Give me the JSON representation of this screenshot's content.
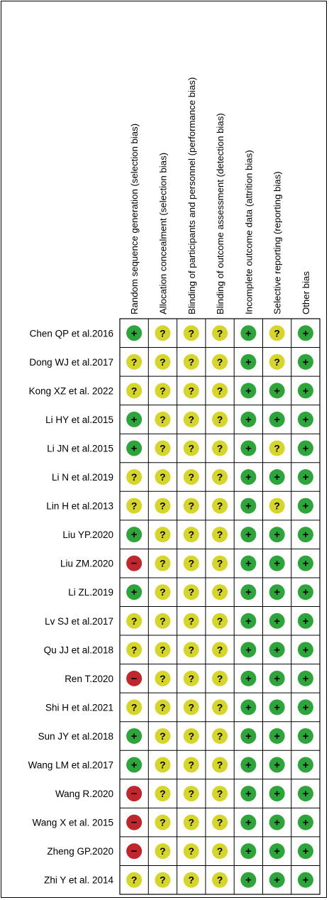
{
  "chart_data": {
    "type": "table",
    "columns": [
      "Random sequence generation (selection bias)",
      "Allocation concealment (selection bias)",
      "Blinding of participants and personnel (performance bias)",
      "Blinding of outcome assessment (detection bias)",
      "Incomplete outcome data (attrition bias)",
      "Selective reporting (reporting bias)",
      "Other bias"
    ],
    "rows": [
      {
        "study": "Chen QP et al.2016",
        "ratings": [
          "low",
          "unclear",
          "unclear",
          "unclear",
          "low",
          "unclear",
          "low"
        ]
      },
      {
        "study": "Dong WJ et al.2017",
        "ratings": [
          "unclear",
          "unclear",
          "unclear",
          "unclear",
          "low",
          "unclear",
          "low"
        ]
      },
      {
        "study": "Kong XZ et al. 2022",
        "ratings": [
          "unclear",
          "unclear",
          "unclear",
          "unclear",
          "low",
          "low",
          "low"
        ]
      },
      {
        "study": "Li HY et al.2015",
        "ratings": [
          "low",
          "unclear",
          "unclear",
          "unclear",
          "low",
          "low",
          "low"
        ]
      },
      {
        "study": "Li JN et al.2015",
        "ratings": [
          "low",
          "unclear",
          "unclear",
          "unclear",
          "low",
          "unclear",
          "low"
        ]
      },
      {
        "study": "Li N et al.2019",
        "ratings": [
          "unclear",
          "unclear",
          "unclear",
          "unclear",
          "low",
          "low",
          "low"
        ]
      },
      {
        "study": "Lin H et al.2013",
        "ratings": [
          "unclear",
          "unclear",
          "unclear",
          "unclear",
          "low",
          "unclear",
          "low"
        ]
      },
      {
        "study": "Liu YP.2020",
        "ratings": [
          "low",
          "unclear",
          "unclear",
          "unclear",
          "low",
          "low",
          "low"
        ]
      },
      {
        "study": "Liu ZM.2020",
        "ratings": [
          "high",
          "unclear",
          "unclear",
          "unclear",
          "low",
          "low",
          "low"
        ]
      },
      {
        "study": "Li ZL.2019",
        "ratings": [
          "low",
          "unclear",
          "unclear",
          "unclear",
          "low",
          "low",
          "low"
        ]
      },
      {
        "study": "Lv SJ et al.2017",
        "ratings": [
          "unclear",
          "unclear",
          "unclear",
          "unclear",
          "low",
          "low",
          "low"
        ]
      },
      {
        "study": "Qu JJ et al.2018",
        "ratings": [
          "unclear",
          "unclear",
          "unclear",
          "unclear",
          "low",
          "low",
          "low"
        ]
      },
      {
        "study": "Ren T.2020",
        "ratings": [
          "high",
          "unclear",
          "unclear",
          "unclear",
          "low",
          "low",
          "low"
        ]
      },
      {
        "study": "Shi H et al.2021",
        "ratings": [
          "unclear",
          "unclear",
          "unclear",
          "unclear",
          "low",
          "low",
          "low"
        ]
      },
      {
        "study": "Sun JY et al.2018",
        "ratings": [
          "low",
          "unclear",
          "unclear",
          "unclear",
          "low",
          "low",
          "low"
        ]
      },
      {
        "study": "Wang LM et al.2017",
        "ratings": [
          "low",
          "unclear",
          "unclear",
          "unclear",
          "low",
          "low",
          "low"
        ]
      },
      {
        "study": "Wang R.2020",
        "ratings": [
          "high",
          "unclear",
          "unclear",
          "unclear",
          "low",
          "low",
          "low"
        ]
      },
      {
        "study": "Wang X et al. 2015",
        "ratings": [
          "high",
          "unclear",
          "unclear",
          "unclear",
          "low",
          "low",
          "low"
        ]
      },
      {
        "study": "Zheng GP.2020",
        "ratings": [
          "high",
          "unclear",
          "unclear",
          "unclear",
          "low",
          "low",
          "low"
        ]
      },
      {
        "study": "Zhi Y et al. 2014",
        "ratings": [
          "unclear",
          "unclear",
          "unclear",
          "unclear",
          "low",
          "low",
          "low"
        ]
      }
    ],
    "symbols": {
      "low": {
        "glyph": "+",
        "color": "#2ea53b"
      },
      "unclear": {
        "glyph": "?",
        "color": "#d6d62a"
      },
      "high": {
        "glyph": "−",
        "color": "#c0272d"
      }
    }
  }
}
